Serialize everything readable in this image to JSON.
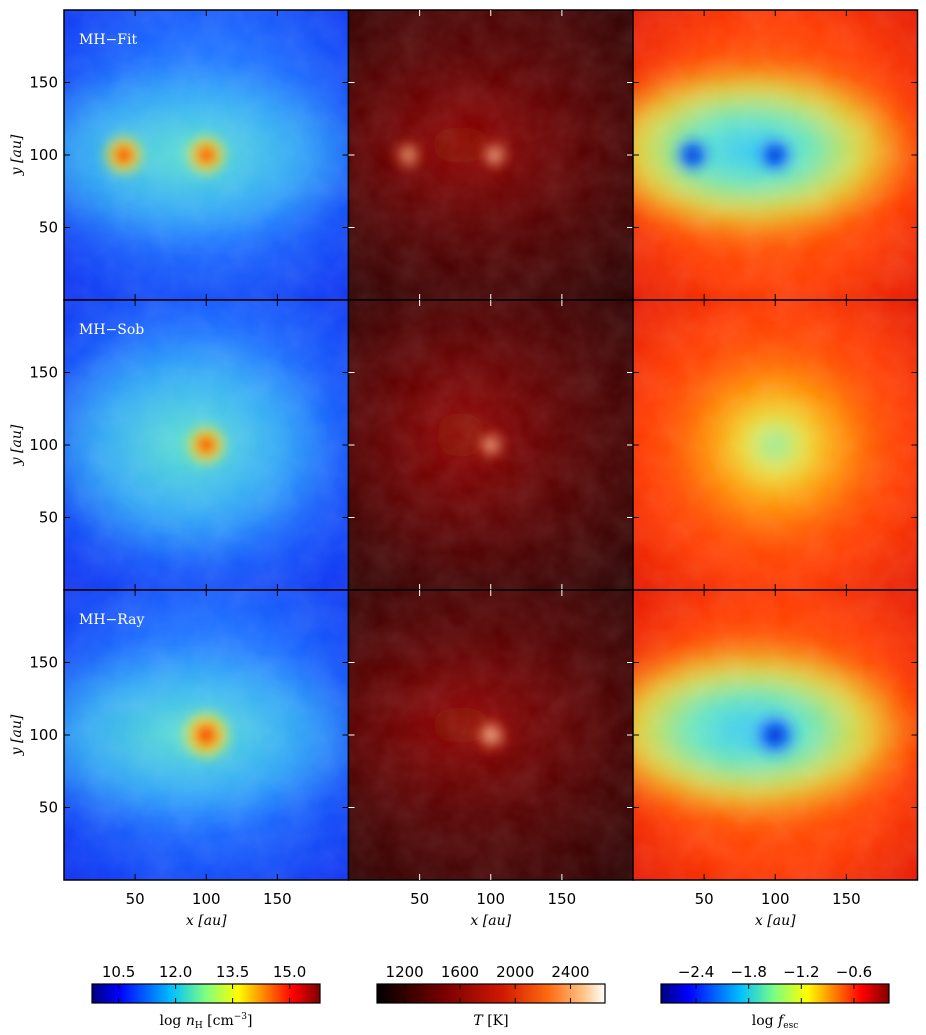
{
  "figure": {
    "row_labels": [
      "MH−Fit",
      "MH−Sob",
      "MH−Ray"
    ],
    "x_axis_label": "x [au]",
    "y_axis_label": "y [au]",
    "x_ticks": [
      "50",
      "100",
      "150"
    ],
    "y_ticks": [
      "50",
      "100",
      "150"
    ],
    "colorbars": [
      {
        "label": "log n_H [cm⁻³]",
        "label_main": "log ",
        "label_var": "n",
        "label_sub": "H",
        "label_unit": " [cm",
        "label_sup": "−3",
        "label_end": "]",
        "ticks": [
          "10.5",
          "12.0",
          "13.5",
          "15.0"
        ]
      },
      {
        "label": "T [K]",
        "label_var": "T",
        "label_unit": " [K]",
        "ticks": [
          "1200",
          "1600",
          "2000",
          "2400"
        ]
      },
      {
        "label": "log f_esc",
        "label_main": "log ",
        "label_var": "f",
        "label_sub": "esc",
        "ticks": [
          "−2.4",
          "−1.8",
          "−1.2",
          "−0.6"
        ]
      }
    ]
  },
  "colors": {
    "jet": [
      "#00007f",
      "#0000ff",
      "#007fff",
      "#00ffff",
      "#7fff7f",
      "#ffff00",
      "#ff7f00",
      "#ff0000",
      "#7f0000"
    ],
    "hot": [
      "#000000",
      "#5a0000",
      "#a00000",
      "#e03010",
      "#ff7a20",
      "#ffd090",
      "#ffffff"
    ]
  },
  "chart_data": {
    "type": "heatmap",
    "rows": [
      "MH−Fit",
      "MH−Sob",
      "MH−Ray"
    ],
    "columns": [
      "log n_H [cm^-3]",
      "T [K]",
      "log f_esc"
    ],
    "xlabel": "x [au]",
    "ylabel": "y [au]",
    "xlim": [
      0,
      200
    ],
    "ylim": [
      0,
      200
    ],
    "x_ticks": [
      50,
      100,
      150
    ],
    "y_ticks": [
      50,
      100,
      150
    ],
    "colorbar_ranges": {
      "log n_H [cm^-3]": [
        9.8,
        15.8
      ],
      "T [K]": [
        1000,
        2650
      ],
      "log f_esc": [
        -2.8,
        -0.2
      ]
    }
  }
}
